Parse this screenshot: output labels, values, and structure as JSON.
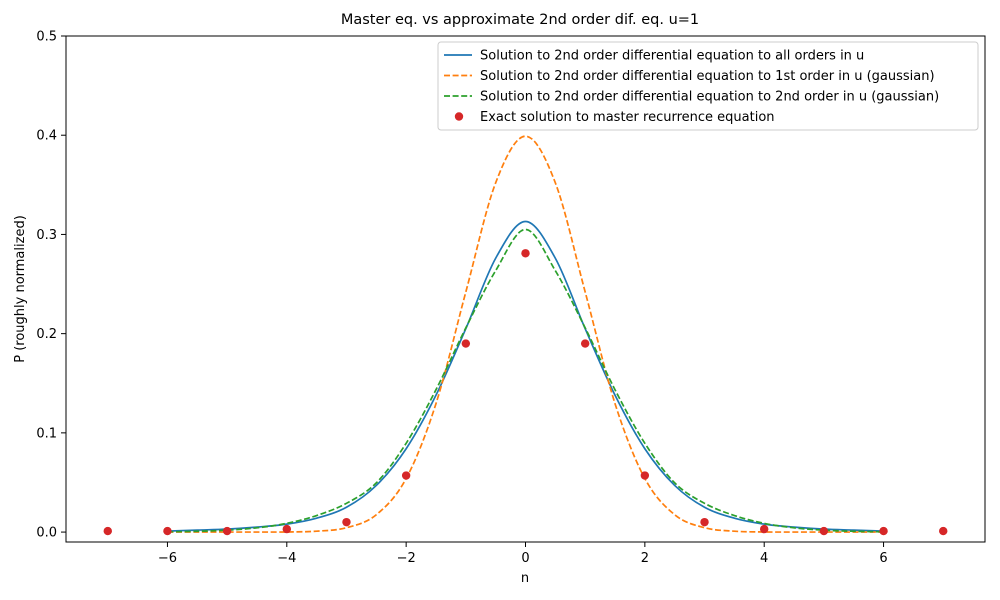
{
  "chart_data": {
    "type": "line",
    "title": "Master eq. vs approximate 2nd order dif. eq. u=1",
    "xlabel": "n",
    "ylabel": "P (roughly normalized)",
    "xlim": [
      -7.7,
      7.7
    ],
    "ylim": [
      -0.01,
      0.5
    ],
    "xticks": [
      -6,
      -4,
      -2,
      0,
      2,
      4,
      6
    ],
    "xtick_labels": [
      "−6",
      "−4",
      "−2",
      "0",
      "2",
      "4",
      "6"
    ],
    "yticks": [
      0.0,
      0.1,
      0.2,
      0.3,
      0.4,
      0.5
    ],
    "ytick_labels": [
      "0.0",
      "0.1",
      "0.2",
      "0.3",
      "0.4",
      "0.5"
    ],
    "grid": false,
    "legend_position": "top-right",
    "series": [
      {
        "name": "Solution to 2nd order differential equation to all orders in u",
        "style": "solid",
        "color": "#1f77b4",
        "x": [
          -6,
          -5.5,
          -5,
          -4.5,
          -4,
          -3.5,
          -3,
          -2.5,
          -2,
          -1.5,
          -1,
          -0.5,
          0,
          0.5,
          1,
          1.5,
          2,
          2.5,
          3,
          3.5,
          4,
          4.5,
          5,
          5.5,
          6
        ],
        "y": [
          0.001,
          0.002,
          0.003,
          0.005,
          0.008,
          0.014,
          0.025,
          0.047,
          0.084,
          0.138,
          0.205,
          0.276,
          0.313,
          0.276,
          0.205,
          0.138,
          0.084,
          0.047,
          0.025,
          0.014,
          0.008,
          0.005,
          0.003,
          0.002,
          0.001
        ]
      },
      {
        "name": "Solution to 2nd order differential equation to 1st order in u (gaussian)",
        "style": "dashed",
        "color": "#ff7f0e",
        "x": [
          -6,
          -5.5,
          -5,
          -4.5,
          -4,
          -3.5,
          -3,
          -2.5,
          -2,
          -1.5,
          -1,
          -0.5,
          0,
          0.5,
          1,
          1.5,
          2,
          2.5,
          3,
          3.5,
          4,
          4.5,
          5,
          5.5,
          6
        ],
        "y": [
          0.0,
          0.0,
          0.0,
          0.0,
          0.0001,
          0.0009,
          0.0044,
          0.0175,
          0.054,
          0.1295,
          0.242,
          0.352,
          0.399,
          0.352,
          0.242,
          0.1295,
          0.054,
          0.0175,
          0.0044,
          0.0009,
          0.0001,
          0.0,
          0.0,
          0.0,
          0.0
        ]
      },
      {
        "name": "Solution to 2nd order differential equation to 2nd order in u (gaussian)",
        "style": "dashed",
        "color": "#2ca02c",
        "x": [
          -6,
          -5.5,
          -5,
          -4.5,
          -4,
          -3.5,
          -3,
          -2.5,
          -2,
          -1.5,
          -1,
          -0.5,
          0,
          0.5,
          1,
          1.5,
          2,
          2.5,
          3,
          3.5,
          4,
          4.5,
          5,
          5.5,
          6
        ],
        "y": [
          0.0003,
          0.0008,
          0.0019,
          0.0043,
          0.0088,
          0.0167,
          0.029,
          0.0496,
          0.0895,
          0.1435,
          0.2058,
          0.2635,
          0.305,
          0.2635,
          0.2058,
          0.1435,
          0.0895,
          0.0496,
          0.029,
          0.0167,
          0.0088,
          0.0043,
          0.0019,
          0.0008,
          0.0003
        ]
      },
      {
        "name": "Exact solution to master recurrence equation",
        "style": "points",
        "color": "#d62728",
        "x": [
          -7,
          -6,
          -5,
          -4,
          -3,
          -2,
          -1,
          0,
          1,
          2,
          3,
          4,
          5,
          6,
          7
        ],
        "y": [
          0.001,
          0.001,
          0.001,
          0.003,
          0.01,
          0.057,
          0.19,
          0.281,
          0.19,
          0.057,
          0.01,
          0.003,
          0.001,
          0.001,
          0.001
        ]
      }
    ]
  }
}
